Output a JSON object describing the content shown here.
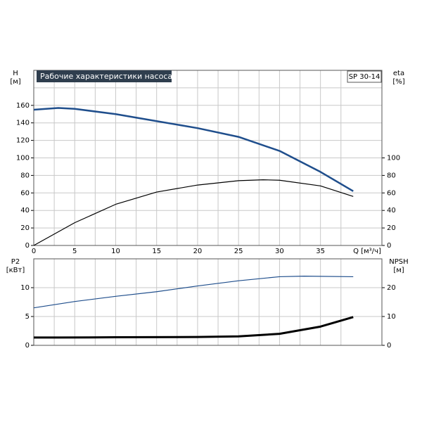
{
  "chart_data": [
    {
      "type": "line",
      "title": "Рабочие характеристики насоса",
      "model_label": "SP 30-14",
      "x_label": "Q [м³/ч]",
      "y_label": "H",
      "y_unit": "[м]",
      "y2_label": "eta",
      "y2_unit": "[%]",
      "xlim": [
        0,
        42.5
      ],
      "xticks": [
        0,
        5,
        10,
        15,
        20,
        25,
        30,
        35
      ],
      "show_xtick_labels": true,
      "ylim": [
        0,
        200
      ],
      "yticks": [
        0,
        20,
        40,
        60,
        80,
        100,
        120,
        140,
        160
      ],
      "y2lim": [
        0,
        200
      ],
      "y2ticks": [
        0,
        20,
        40,
        60,
        80,
        100
      ],
      "grid": true,
      "series": [
        {
          "name": "H",
          "color": "#1f4e8c",
          "width": 2.5,
          "axis": "y",
          "x": [
            0,
            3,
            5,
            10,
            15,
            20,
            25,
            30,
            35,
            39
          ],
          "values": [
            155,
            157,
            156,
            150,
            142,
            134,
            124,
            108,
            84,
            62
          ]
        },
        {
          "name": "eta",
          "color": "#000000",
          "width": 1.2,
          "axis": "y2",
          "x": [
            0,
            5,
            10,
            15,
            20,
            25,
            28,
            30,
            35,
            39
          ],
          "values": [
            0,
            26,
            47,
            61,
            69,
            74,
            75,
            74.5,
            68,
            56
          ]
        }
      ]
    },
    {
      "type": "line",
      "y_label": "P2",
      "y_unit": "[кВт]",
      "y2_label": "NPSH",
      "y2_unit": "[м]",
      "xlim": [
        0,
        42.5
      ],
      "xticks": [
        0,
        5,
        10,
        15,
        20,
        25,
        30,
        35
      ],
      "show_xtick_labels": false,
      "ylim": [
        0,
        15
      ],
      "yticks": [
        0,
        5,
        10
      ],
      "y2lim": [
        0,
        30
      ],
      "y2ticks": [
        0,
        10,
        20
      ],
      "grid": true,
      "series": [
        {
          "name": "P2",
          "color": "#1f4e8c",
          "width": 1.2,
          "axis": "y",
          "x": [
            0,
            5,
            10,
            15,
            20,
            25,
            30,
            33,
            39
          ],
          "values": [
            6.5,
            7.6,
            8.5,
            9.3,
            10.3,
            11.2,
            11.9,
            12.0,
            11.9
          ]
        },
        {
          "name": "NPSH",
          "color": "#000000",
          "width": 3,
          "axis": "y2",
          "x": [
            0,
            3,
            10,
            20,
            25,
            30,
            35,
            39
          ],
          "values": [
            2.7,
            2.7,
            2.8,
            2.9,
            3.1,
            4,
            6.5,
            9.8
          ]
        }
      ]
    }
  ]
}
